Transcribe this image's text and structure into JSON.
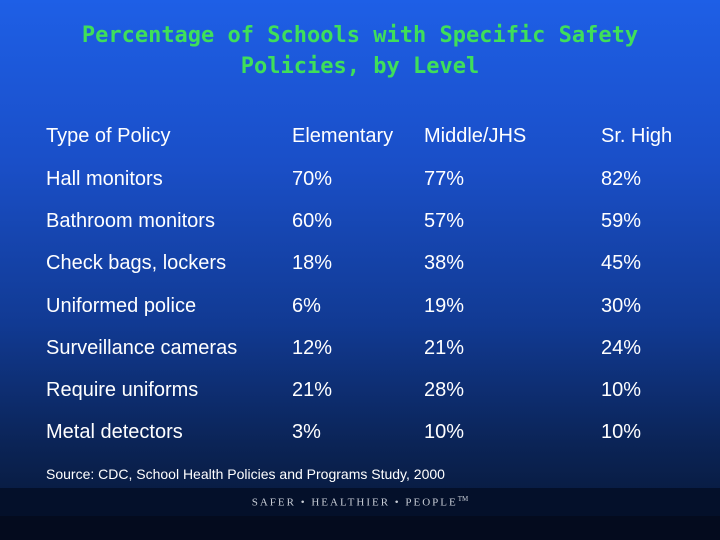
{
  "title": "Percentage of Schools with Specific Safety Policies, by Level",
  "table": {
    "headers": [
      "Type of Policy",
      "Elementary",
      "Middle/JHS",
      "Sr. High"
    ],
    "rows": [
      [
        "Hall monitors",
        "70%",
        "77%",
        "82%"
      ],
      [
        "Bathroom monitors",
        "60%",
        "57%",
        "59%"
      ],
      [
        "Check bags, lockers",
        "18%",
        "38%",
        "45%"
      ],
      [
        "Uniformed police",
        "6%",
        "19%",
        "30%"
      ],
      [
        "Surveillance cameras",
        "12%",
        "21%",
        "24%"
      ],
      [
        "Require uniforms",
        "21%",
        "28%",
        "10%"
      ],
      [
        "Metal detectors",
        "3%",
        "10%",
        "10%"
      ]
    ]
  },
  "source": "Source:  CDC, School Health Policies and Programs Study, 2000",
  "footer": {
    "slogan": "SAFER • HEALTHIER • PEOPLE",
    "trademark": "TM"
  },
  "colors": {
    "title": "#3fdf5a",
    "background_top": "#1e5fe6",
    "background_bottom": "#061530"
  }
}
